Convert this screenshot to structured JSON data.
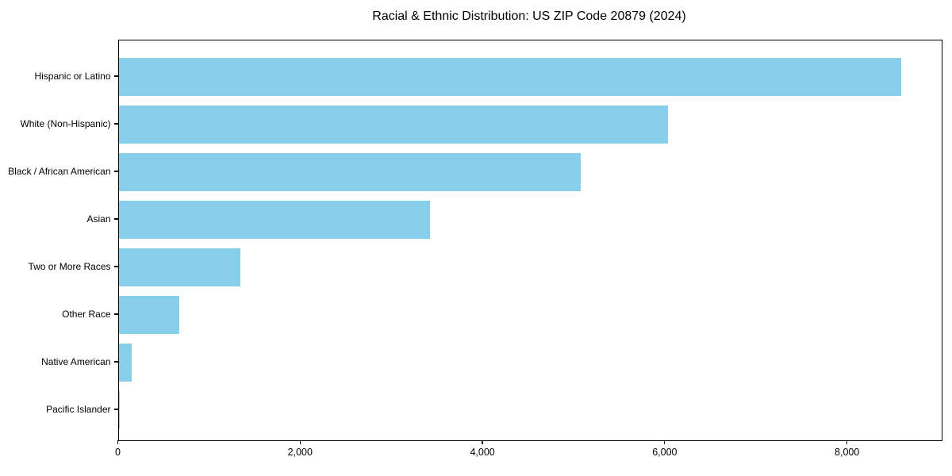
{
  "chart_data": {
    "type": "bar",
    "orientation": "horizontal",
    "title": "Racial & Ethnic Distribution: US ZIP Code 20879 (2024)",
    "categories": [
      "Hispanic or Latino",
      "White (Non-Hispanic)",
      "Black / African American",
      "Asian",
      "Two or More Races",
      "Other Race",
      "Native American",
      "Pacific Islander"
    ],
    "values": [
      8590,
      6030,
      5070,
      3420,
      1340,
      670,
      140,
      10
    ],
    "xlabel": "",
    "ylabel": "",
    "xlim": [
      0,
      9030
    ],
    "xticks": [
      0,
      2000,
      4000,
      6000,
      8000
    ],
    "xtick_labels": [
      "0",
      "2,000",
      "4,000",
      "6,000",
      "8,000"
    ],
    "bar_color": "#87CEEB",
    "frame_color": "#000000",
    "text_color": "#000000",
    "background_color": "#ffffff",
    "grid": false,
    "legend": null,
    "value_labels_shown": false
  }
}
